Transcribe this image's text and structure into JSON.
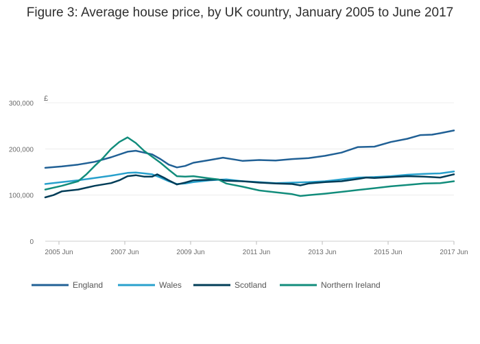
{
  "chart_data": {
    "type": "line",
    "title": "Figure 3: Average house price, by UK country, January 2005 to June 2017",
    "ylabel": "£",
    "ylim": [
      0,
      300000
    ],
    "y_ticks": [
      {
        "value": 0,
        "label": "0"
      },
      {
        "value": 100000,
        "label": "100,000"
      },
      {
        "value": 200000,
        "label": "200,000"
      },
      {
        "value": 300000,
        "label": "300,000"
      }
    ],
    "x_start": 2005.0,
    "x_end": 2017.4167,
    "x_ticks": [
      {
        "value": 2005.4167,
        "label": "2005 Jun"
      },
      {
        "value": 2007.4167,
        "label": "2007 Jun"
      },
      {
        "value": 2009.4167,
        "label": "2009 Jun"
      },
      {
        "value": 2011.4167,
        "label": "2011 Jun"
      },
      {
        "value": 2013.4167,
        "label": "2013 Jun"
      },
      {
        "value": 2015.4167,
        "label": "2015 Jun"
      },
      {
        "value": 2017.4167,
        "label": "2017 Jun"
      }
    ],
    "legend_position": "bottom",
    "series": [
      {
        "name": "England",
        "color": "#206095",
        "points": [
          [
            2005.0,
            159000
          ],
          [
            2005.5,
            162000
          ],
          [
            2006.0,
            166000
          ],
          [
            2006.5,
            172000
          ],
          [
            2007.0,
            182000
          ],
          [
            2007.5,
            194000
          ],
          [
            2007.75,
            196000
          ],
          [
            2008.0,
            192000
          ],
          [
            2008.25,
            188000
          ],
          [
            2008.5,
            178000
          ],
          [
            2008.75,
            166000
          ],
          [
            2009.0,
            160000
          ],
          [
            2009.25,
            163000
          ],
          [
            2009.5,
            170000
          ],
          [
            2010.0,
            176000
          ],
          [
            2010.4,
            181000
          ],
          [
            2010.75,
            177000
          ],
          [
            2011.0,
            174000
          ],
          [
            2011.5,
            176000
          ],
          [
            2012.0,
            175000
          ],
          [
            2012.5,
            178000
          ],
          [
            2013.0,
            180000
          ],
          [
            2013.5,
            185000
          ],
          [
            2014.0,
            192000
          ],
          [
            2014.5,
            204000
          ],
          [
            2015.0,
            205000
          ],
          [
            2015.5,
            215000
          ],
          [
            2016.0,
            222000
          ],
          [
            2016.4,
            230000
          ],
          [
            2016.75,
            231000
          ],
          [
            2017.0,
            234000
          ],
          [
            2017.4167,
            240000
          ]
        ]
      },
      {
        "name": "Wales",
        "color": "#27a0cc",
        "points": [
          [
            2005.0,
            124000
          ],
          [
            2005.5,
            128000
          ],
          [
            2006.0,
            132000
          ],
          [
            2006.5,
            137000
          ],
          [
            2007.0,
            142000
          ],
          [
            2007.5,
            148000
          ],
          [
            2007.75,
            149000
          ],
          [
            2008.0,
            147000
          ],
          [
            2008.25,
            145000
          ],
          [
            2008.5,
            138000
          ],
          [
            2008.75,
            130000
          ],
          [
            2009.0,
            124000
          ],
          [
            2009.25,
            125000
          ],
          [
            2009.5,
            128000
          ],
          [
            2010.0,
            132000
          ],
          [
            2010.5,
            134000
          ],
          [
            2011.0,
            130000
          ],
          [
            2011.5,
            128000
          ],
          [
            2012.0,
            126000
          ],
          [
            2012.5,
            127000
          ],
          [
            2013.0,
            128000
          ],
          [
            2013.5,
            130000
          ],
          [
            2014.0,
            134000
          ],
          [
            2014.5,
            138000
          ],
          [
            2015.0,
            139000
          ],
          [
            2015.5,
            141000
          ],
          [
            2016.0,
            144000
          ],
          [
            2016.5,
            146000
          ],
          [
            2017.0,
            147000
          ],
          [
            2017.4167,
            151000
          ]
        ]
      },
      {
        "name": "Scotland",
        "color": "#003c57",
        "points": [
          [
            2005.0,
            95000
          ],
          [
            2005.25,
            100000
          ],
          [
            2005.5,
            108000
          ],
          [
            2006.0,
            112000
          ],
          [
            2006.5,
            120000
          ],
          [
            2007.0,
            126000
          ],
          [
            2007.25,
            132000
          ],
          [
            2007.5,
            141000
          ],
          [
            2007.75,
            143000
          ],
          [
            2008.0,
            140000
          ],
          [
            2008.25,
            140000
          ],
          [
            2008.4,
            145000
          ],
          [
            2008.6,
            138000
          ],
          [
            2008.75,
            132000
          ],
          [
            2009.0,
            123000
          ],
          [
            2009.25,
            127000
          ],
          [
            2009.5,
            132000
          ],
          [
            2010.0,
            133000
          ],
          [
            2010.25,
            134000
          ],
          [
            2010.5,
            131000
          ],
          [
            2011.0,
            130000
          ],
          [
            2011.5,
            127000
          ],
          [
            2012.0,
            125000
          ],
          [
            2012.5,
            124000
          ],
          [
            2012.75,
            121000
          ],
          [
            2013.0,
            125000
          ],
          [
            2013.5,
            128000
          ],
          [
            2014.0,
            130000
          ],
          [
            2014.5,
            135000
          ],
          [
            2014.75,
            138000
          ],
          [
            2015.0,
            137000
          ],
          [
            2015.5,
            139000
          ],
          [
            2016.0,
            141000
          ],
          [
            2016.5,
            140000
          ],
          [
            2017.0,
            138000
          ],
          [
            2017.4167,
            145000
          ]
        ]
      },
      {
        "name": "Northern Ireland",
        "color": "#118c7b",
        "points": [
          [
            2005.0,
            112000
          ],
          [
            2005.5,
            120000
          ],
          [
            2006.0,
            130000
          ],
          [
            2006.25,
            145000
          ],
          [
            2006.5,
            163000
          ],
          [
            2006.75,
            180000
          ],
          [
            2007.0,
            200000
          ],
          [
            2007.25,
            215000
          ],
          [
            2007.5,
            225000
          ],
          [
            2007.75,
            213000
          ],
          [
            2008.0,
            196000
          ],
          [
            2008.25,
            183000
          ],
          [
            2008.5,
            170000
          ],
          [
            2008.75,
            155000
          ],
          [
            2009.0,
            141000
          ],
          [
            2009.25,
            140000
          ],
          [
            2009.5,
            141000
          ],
          [
            2010.0,
            136000
          ],
          [
            2010.25,
            134000
          ],
          [
            2010.5,
            125000
          ],
          [
            2011.0,
            118000
          ],
          [
            2011.5,
            110000
          ],
          [
            2012.0,
            106000
          ],
          [
            2012.5,
            102000
          ],
          [
            2012.75,
            98000
          ],
          [
            2013.0,
            100000
          ],
          [
            2013.5,
            103000
          ],
          [
            2014.0,
            107000
          ],
          [
            2014.5,
            111000
          ],
          [
            2015.0,
            115000
          ],
          [
            2015.5,
            119000
          ],
          [
            2016.0,
            122000
          ],
          [
            2016.5,
            125000
          ],
          [
            2017.0,
            126000
          ],
          [
            2017.4167,
            130000
          ]
        ]
      }
    ]
  }
}
